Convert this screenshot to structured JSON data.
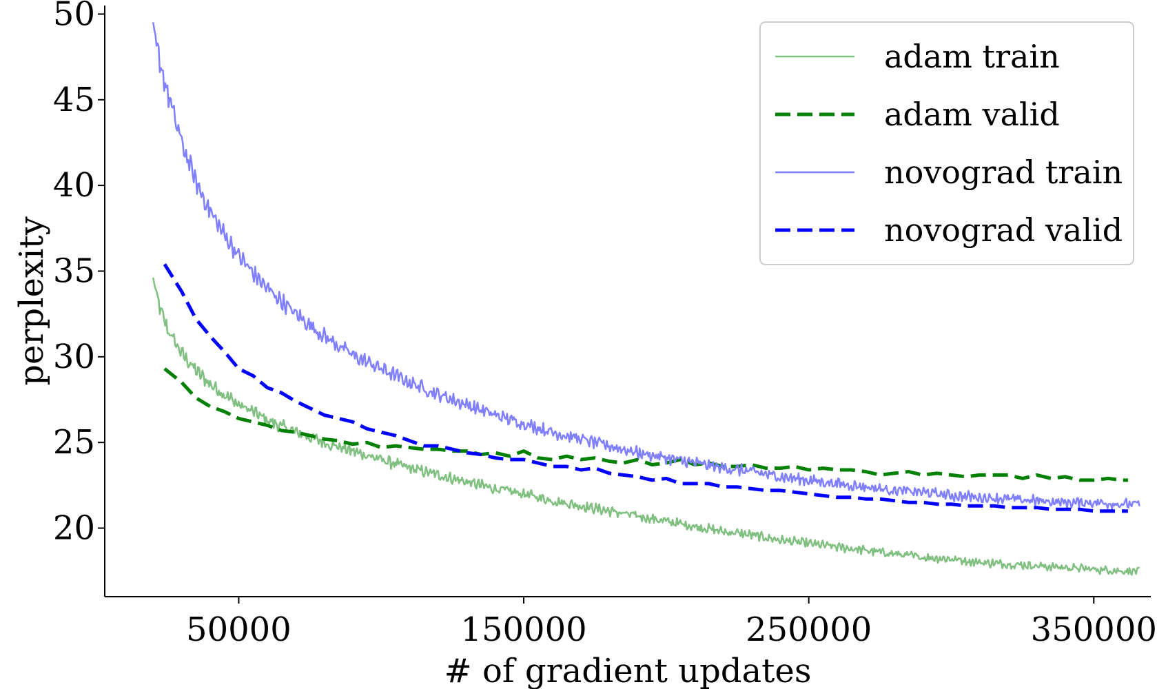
{
  "chart_data": {
    "type": "line",
    "xlabel": "# of gradient updates",
    "ylabel": "perplexity",
    "xlim": [
      3000,
      370000
    ],
    "ylim": [
      16,
      50.5
    ],
    "xticks": [
      50000,
      150000,
      250000,
      350000
    ],
    "xtick_labels": [
      "50000",
      "150000",
      "250000",
      "350000"
    ],
    "yticks": [
      20,
      25,
      30,
      35,
      40,
      45,
      50
    ],
    "ytick_labels": [
      "20",
      "25",
      "30",
      "35",
      "40",
      "45",
      "50"
    ],
    "grid": false,
    "legend_position": "top-right",
    "series": [
      {
        "name": "adam train",
        "color": "#7fbf7f",
        "style": "solid",
        "noisy": true,
        "x": [
          20000,
          22000,
          25000,
          30000,
          35000,
          40000,
          45000,
          50000,
          55000,
          60000,
          70000,
          80000,
          90000,
          100000,
          110000,
          120000,
          130000,
          140000,
          150000,
          160000,
          170000,
          180000,
          190000,
          200000,
          210000,
          220000,
          230000,
          240000,
          250000,
          260000,
          270000,
          280000,
          290000,
          300000,
          310000,
          320000,
          330000,
          340000,
          350000,
          360000,
          366000
        ],
        "values": [
          34.5,
          33.0,
          31.6,
          30.2,
          29.2,
          28.4,
          27.8,
          27.2,
          26.8,
          26.3,
          25.6,
          25.0,
          24.5,
          24.0,
          23.5,
          23.1,
          22.7,
          22.3,
          22.0,
          21.6,
          21.3,
          21.0,
          20.7,
          20.4,
          20.1,
          19.8,
          19.6,
          19.3,
          19.1,
          18.9,
          18.7,
          18.5,
          18.3,
          18.2,
          18.0,
          17.9,
          17.8,
          17.7,
          17.6,
          17.5,
          17.5
        ]
      },
      {
        "name": "adam valid",
        "color": "#008000",
        "style": "dashed",
        "noisy": false,
        "x": [
          24000,
          30000,
          35000,
          40000,
          45000,
          50000,
          55000,
          60000,
          65000,
          70000,
          75000,
          80000,
          85000,
          90000,
          95000,
          100000,
          105000,
          110000,
          115000,
          120000,
          125000,
          130000,
          135000,
          140000,
          145000,
          150000,
          155000,
          160000,
          165000,
          170000,
          175000,
          180000,
          185000,
          190000,
          195000,
          200000,
          205000,
          210000,
          215000,
          220000,
          225000,
          230000,
          235000,
          240000,
          245000,
          250000,
          255000,
          260000,
          265000,
          270000,
          275000,
          280000,
          285000,
          290000,
          295000,
          300000,
          305000,
          310000,
          315000,
          320000,
          325000,
          330000,
          335000,
          340000,
          345000,
          350000,
          355000,
          360000,
          362000
        ],
        "values": [
          29.3,
          28.5,
          27.6,
          27.1,
          26.8,
          26.4,
          26.2,
          26.0,
          25.7,
          25.6,
          25.4,
          25.2,
          25.1,
          24.9,
          25.0,
          24.7,
          24.8,
          24.7,
          24.6,
          24.6,
          24.5,
          24.5,
          24.3,
          24.4,
          24.2,
          24.5,
          24.1,
          24.0,
          24.2,
          24.0,
          24.1,
          23.9,
          23.8,
          24.0,
          23.7,
          23.8,
          24.0,
          23.7,
          23.8,
          23.6,
          23.6,
          23.7,
          23.5,
          23.5,
          23.6,
          23.4,
          23.5,
          23.4,
          23.4,
          23.3,
          23.1,
          23.2,
          23.3,
          23.1,
          23.2,
          23.1,
          23.0,
          23.1,
          23.1,
          23.1,
          22.9,
          23.1,
          22.9,
          23.0,
          22.8,
          22.8,
          22.9,
          22.8,
          22.8
        ]
      },
      {
        "name": "novograd train",
        "color": "#7f7fff",
        "style": "solid",
        "noisy": true,
        "x": [
          20000,
          22000,
          25000,
          30000,
          35000,
          40000,
          45000,
          50000,
          55000,
          60000,
          70000,
          80000,
          90000,
          100000,
          110000,
          120000,
          130000,
          140000,
          150000,
          160000,
          170000,
          180000,
          190000,
          200000,
          210000,
          220000,
          230000,
          240000,
          250000,
          260000,
          270000,
          280000,
          290000,
          300000,
          310000,
          320000,
          330000,
          340000,
          350000,
          360000,
          366000
        ],
        "values": [
          49.0,
          47.5,
          45.4,
          42.5,
          40.2,
          38.5,
          37.1,
          35.9,
          34.9,
          34.0,
          32.5,
          31.2,
          30.1,
          29.3,
          28.5,
          27.8,
          27.2,
          26.6,
          26.1,
          25.6,
          25.2,
          24.8,
          24.4,
          24.1,
          23.8,
          23.5,
          23.3,
          23.0,
          22.8,
          22.6,
          22.4,
          22.2,
          22.1,
          21.9,
          21.8,
          21.7,
          21.6,
          21.5,
          21.5,
          21.4,
          21.4
        ]
      },
      {
        "name": "novograd valid",
        "color": "#0000ff",
        "style": "dashed",
        "noisy": false,
        "x": [
          24000,
          30000,
          35000,
          40000,
          45000,
          50000,
          55000,
          60000,
          65000,
          70000,
          75000,
          80000,
          85000,
          90000,
          95000,
          100000,
          105000,
          110000,
          115000,
          120000,
          125000,
          130000,
          135000,
          140000,
          145000,
          150000,
          155000,
          160000,
          165000,
          170000,
          175000,
          180000,
          185000,
          190000,
          195000,
          200000,
          205000,
          210000,
          215000,
          220000,
          225000,
          230000,
          235000,
          240000,
          245000,
          250000,
          255000,
          260000,
          265000,
          270000,
          275000,
          280000,
          285000,
          290000,
          295000,
          300000,
          305000,
          310000,
          315000,
          320000,
          325000,
          330000,
          335000,
          340000,
          345000,
          350000,
          355000,
          360000,
          362000
        ],
        "values": [
          35.4,
          33.8,
          32.2,
          31.2,
          30.3,
          29.3,
          28.9,
          28.2,
          27.9,
          27.4,
          27.0,
          26.6,
          26.4,
          26.2,
          25.8,
          25.6,
          25.4,
          25.1,
          24.8,
          24.8,
          24.6,
          24.4,
          24.3,
          24.1,
          24.0,
          24.0,
          23.8,
          23.6,
          23.6,
          23.4,
          23.5,
          23.2,
          23.1,
          23.0,
          22.8,
          22.9,
          22.6,
          22.6,
          22.6,
          22.4,
          22.4,
          22.3,
          22.2,
          22.2,
          22.1,
          22.0,
          21.9,
          21.8,
          21.8,
          21.7,
          21.7,
          21.6,
          21.5,
          21.5,
          21.4,
          21.4,
          21.3,
          21.3,
          21.3,
          21.2,
          21.2,
          21.2,
          21.1,
          21.1,
          21.1,
          21.0,
          21.0,
          21.0,
          21.0
        ]
      }
    ]
  }
}
